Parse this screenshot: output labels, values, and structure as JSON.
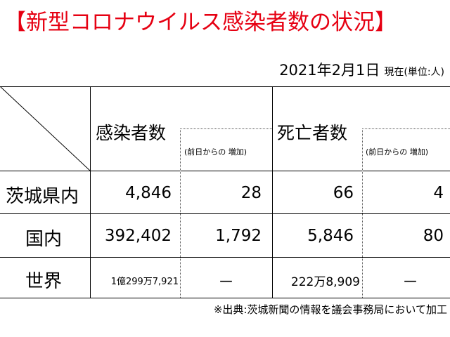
{
  "title": "【新型コロナウイルス感染者数の状況】",
  "date": "2021年2月1日",
  "unit_note": "現在(単位:人)",
  "headers": {
    "infected": "感染者数",
    "infected_increase": "(前日からの 増加)",
    "deaths": "死亡者数",
    "deaths_increase": "(前日からの 増加)"
  },
  "rows": [
    {
      "label": "茨城県内",
      "infected": "4,846",
      "infected_increase": "28",
      "deaths": "66",
      "deaths_increase": "4"
    },
    {
      "label": "国内",
      "infected": "392,402",
      "infected_increase": "1,792",
      "deaths": "5,846",
      "deaths_increase": "80"
    },
    {
      "label": "世界",
      "infected": "1億299万7,921",
      "infected_increase": "－",
      "deaths": "222万8,909",
      "deaths_increase": "－"
    }
  ],
  "source": "※出典:茨城新聞の情報を議会事務局において加工",
  "colors": {
    "title": "#e60012"
  }
}
